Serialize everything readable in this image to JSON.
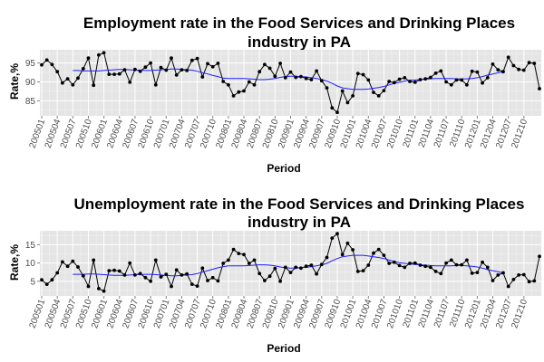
{
  "chart_data": [
    {
      "type": "line",
      "title_line1": "Employment rate in the Food Services and Drinking Places",
      "title_line2": "industry in PA",
      "xlabel": "Period",
      "ylabel": "Rate,%",
      "x_start": "2005-01",
      "x_tick_labels": [
        "200501",
        "200504",
        "200507",
        "200510",
        "200601",
        "200604",
        "200607",
        "200610",
        "200701",
        "200704",
        "200707",
        "200710",
        "200801",
        "200804",
        "200807",
        "200810",
        "200901",
        "200904",
        "200907",
        "200910",
        "201001",
        "201004",
        "201007",
        "201010",
        "201101",
        "201104",
        "201107",
        "201110",
        "201201",
        "201204",
        "201207",
        "201210"
      ],
      "y_ticks": [
        85,
        90,
        95
      ],
      "ylim": [
        81.0,
        98.5
      ],
      "grid": true,
      "legend": "none",
      "colors": {
        "raw": "#000000",
        "smooth": "#0000ff",
        "panel": "#e5e5e5"
      },
      "series": [
        {
          "values": [
            94.5,
            95.8,
            94.6,
            92.7,
            89.7,
            90.8,
            89.2,
            91.0,
            93.5,
            96.3,
            89.1,
            97.1,
            97.7,
            92.0,
            92.0,
            92.1,
            93.2,
            89.9,
            93.3,
            92.8,
            93.9,
            95.0,
            89.2,
            93.8,
            93.1,
            96.3,
            91.8,
            93.2,
            93.0,
            95.7,
            96.2,
            91.3,
            94.8,
            94.0,
            94.9,
            90.1,
            89.2,
            86.3,
            87.3,
            87.6,
            90.0,
            89.2,
            92.7,
            94.6,
            93.6,
            91.5,
            94.9,
            91.1,
            92.6,
            91.2,
            91.4,
            90.9,
            90.6,
            92.9,
            90.3,
            88.4,
            83.1,
            81.9,
            87.6,
            84.5,
            86.3,
            92.2,
            91.9,
            90.5,
            87.2,
            86.3,
            87.7,
            90.1,
            89.8,
            90.7,
            91.1,
            90.1,
            89.9,
            90.6,
            90.8,
            91.2,
            92.3,
            92.9,
            90.0,
            89.2,
            90.5,
            90.5,
            89.2,
            92.8,
            92.6,
            89.7,
            91.1,
            94.7,
            93.2,
            92.7,
            96.5,
            94.3,
            93.3,
            93.1,
            95.1,
            94.9,
            88.2
          ]
        },
        {
          "values": [
            null,
            null,
            null,
            null,
            null,
            null,
            93.0,
            93.0,
            92.9,
            92.9,
            92.9,
            92.9,
            93.0,
            93.1,
            93.2,
            93.3,
            93.3,
            93.2,
            93.1,
            93.1,
            93.0,
            93.0,
            93.1,
            93.2,
            93.3,
            93.4,
            93.4,
            93.3,
            93.2,
            93.1,
            92.8,
            92.4,
            92.1,
            91.7,
            91.4,
            91.0,
            90.9,
            90.9,
            90.9,
            90.9,
            90.8,
            90.7,
            90.6,
            90.6,
            90.7,
            90.9,
            91.2,
            91.4,
            91.5,
            91.5,
            91.4,
            91.3,
            91.1,
            90.9,
            90.6,
            90.2,
            89.6,
            88.9,
            88.4,
            88.2,
            88.0,
            88.0,
            88.0,
            88.1,
            88.3,
            88.5,
            88.8,
            89.2,
            89.6,
            89.9,
            90.2,
            90.4,
            90.5,
            90.6,
            90.7,
            90.8,
            90.9,
            90.9,
            90.9,
            90.9,
            90.8,
            90.8,
            90.8,
            90.9,
            91.1,
            91.4,
            91.8,
            92.1,
            92.4,
            92.7,
            null,
            null,
            null,
            null,
            null,
            null,
            null
          ]
        }
      ]
    },
    {
      "type": "line",
      "title_line1": "Unemployment rate in the Food Services and Drinking Places",
      "title_line2": "industry in PA",
      "xlabel": "Period",
      "ylabel": "Rate,%",
      "x_start": "2005-01",
      "x_tick_labels": [
        "200501",
        "200504",
        "200507",
        "200510",
        "200601",
        "200604",
        "200607",
        "200610",
        "200701",
        "200704",
        "200707",
        "200710",
        "200801",
        "200804",
        "200807",
        "200810",
        "200901",
        "200904",
        "200907",
        "200910",
        "201001",
        "201004",
        "201007",
        "201010",
        "201101",
        "201104",
        "201107",
        "201110",
        "201201",
        "201204",
        "201207",
        "201210"
      ],
      "y_ticks": [
        5,
        10,
        15
      ],
      "ylim": [
        1.0,
        18.8
      ],
      "grid": true,
      "legend": "none",
      "colors": {
        "raw": "#000000",
        "smooth": "#0000ff",
        "panel": "#e5e5e5"
      },
      "series": [
        {
          "values": [
            5.4,
            4.2,
            5.4,
            7.3,
            10.3,
            9.1,
            10.5,
            8.9,
            6.5,
            3.6,
            10.8,
            3.0,
            2.3,
            7.9,
            8.0,
            7.8,
            6.7,
            10.0,
            6.7,
            7.1,
            6.0,
            5.0,
            10.8,
            6.2,
            6.9,
            3.6,
            8.1,
            6.7,
            7.0,
            4.2,
            3.7,
            8.6,
            5.2,
            6.0,
            5.1,
            9.9,
            10.8,
            13.7,
            12.6,
            12.3,
            9.9,
            10.8,
            7.1,
            5.2,
            6.4,
            8.5,
            5.0,
            8.8,
            7.4,
            8.8,
            8.6,
            9.1,
            9.4,
            7.0,
            9.6,
            11.5,
            16.8,
            18.0,
            12.3,
            15.4,
            13.6,
            7.7,
            7.9,
            9.4,
            12.7,
            13.7,
            12.1,
            9.9,
            10.2,
            9.3,
            8.8,
            9.9,
            10.0,
            9.4,
            9.1,
            8.8,
            7.7,
            7.1,
            10.0,
            10.8,
            9.5,
            9.5,
            10.8,
            7.2,
            7.4,
            10.2,
            8.8,
            5.2,
            6.7,
            7.3,
            3.6,
            5.5,
            6.7,
            6.8,
            4.9,
            5.1,
            11.8
          ]
        },
        {
          "values": [
            null,
            null,
            null,
            null,
            null,
            null,
            6.9,
            6.9,
            6.9,
            7.0,
            7.0,
            6.9,
            6.8,
            6.7,
            6.6,
            6.6,
            6.6,
            6.7,
            6.8,
            6.8,
            6.9,
            6.9,
            6.8,
            6.7,
            6.6,
            6.5,
            6.5,
            6.6,
            6.7,
            6.8,
            7.1,
            7.5,
            7.9,
            8.3,
            8.7,
            9.0,
            9.2,
            9.2,
            9.2,
            9.2,
            9.3,
            9.4,
            9.5,
            9.5,
            9.4,
            9.2,
            8.9,
            8.7,
            8.6,
            8.6,
            8.7,
            8.8,
            9.0,
            9.2,
            9.5,
            9.9,
            10.6,
            11.2,
            11.7,
            11.9,
            12.1,
            12.1,
            12.1,
            11.9,
            11.7,
            11.5,
            11.2,
            10.8,
            10.4,
            10.1,
            9.9,
            9.7,
            9.6,
            9.5,
            9.4,
            9.3,
            9.2,
            9.2,
            9.2,
            9.2,
            9.3,
            9.3,
            9.2,
            9.1,
            8.9,
            8.6,
            8.2,
            7.9,
            7.6,
            7.3,
            null,
            null,
            null,
            null,
            null,
            null,
            null
          ]
        }
      ]
    }
  ]
}
